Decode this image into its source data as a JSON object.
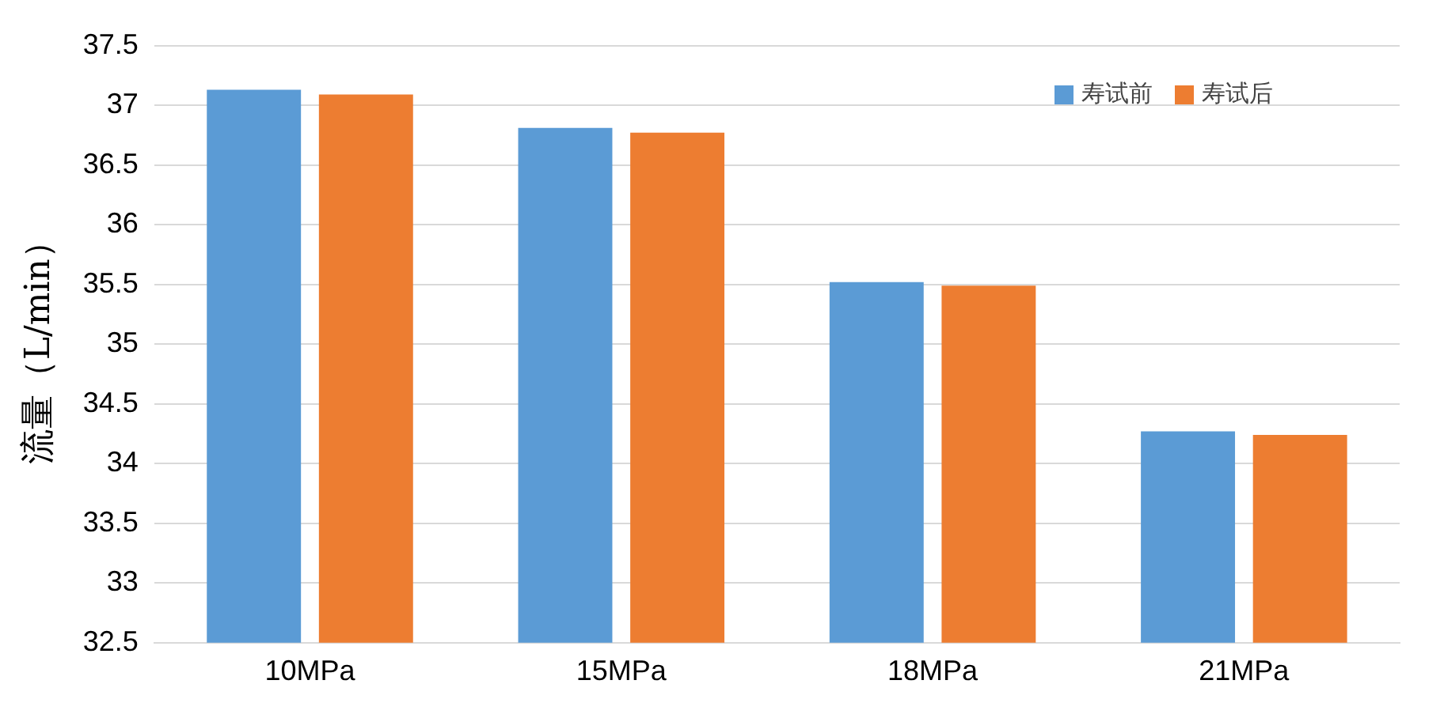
{
  "chart_data": {
    "type": "bar",
    "ylabel": "流量（L/min）",
    "categories": [
      "10MPa",
      "15MPa",
      "18MPa",
      "21MPa"
    ],
    "series": [
      {
        "name": "寿试前",
        "color": "#5b9bd5",
        "values": [
          37.13,
          36.81,
          35.52,
          34.27
        ]
      },
      {
        "name": "寿试后",
        "color": "#ed7d31",
        "values": [
          37.09,
          36.77,
          35.49,
          34.24
        ]
      }
    ],
    "ylim": [
      32.5,
      37.5
    ],
    "yticks": [
      32.5,
      33,
      33.5,
      34,
      34.5,
      35,
      35.5,
      36,
      36.5,
      37,
      37.5
    ],
    "grid": "y",
    "legend": "top right"
  }
}
